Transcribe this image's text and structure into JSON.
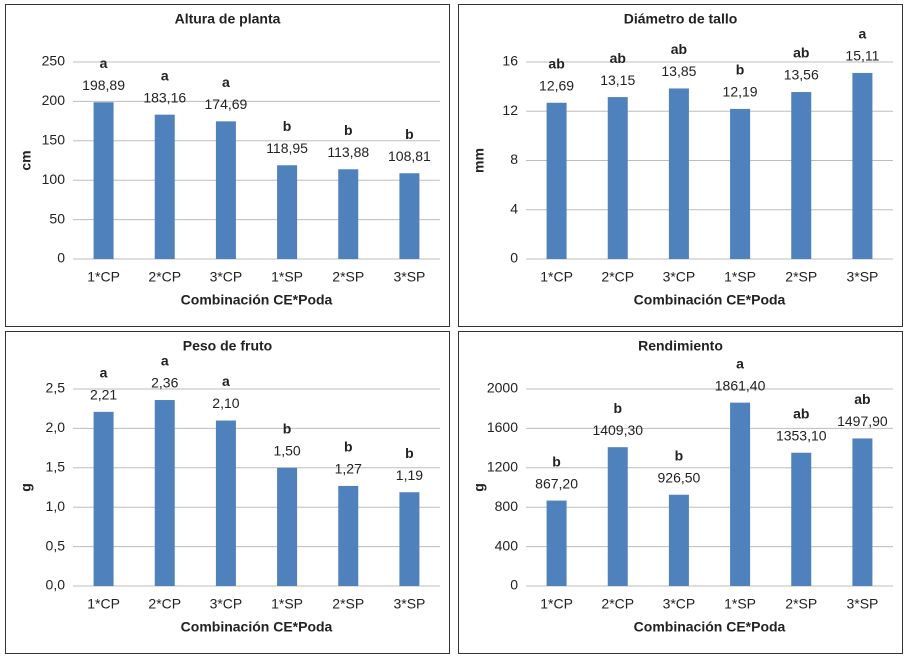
{
  "chart_data": [
    {
      "type": "bar",
      "title": "Altura de planta",
      "xlabel": "Combinación CE*Poda",
      "ylabel": "cm",
      "categories": [
        "1*CP",
        "2*CP",
        "3*CP",
        "1*SP",
        "2*SP",
        "3*SP"
      ],
      "values": [
        198.89,
        183.16,
        174.69,
        118.95,
        113.88,
        108.81
      ],
      "value_labels": [
        "198,89",
        "183,16",
        "174,69",
        "118,95",
        "113,88",
        "108,81"
      ],
      "annotations": [
        "a",
        "a",
        "a",
        "b",
        "b",
        "b"
      ],
      "color": "#4f81bd",
      "ylim": [
        0,
        250
      ],
      "yticks": [
        0,
        50,
        100,
        150,
        200,
        250
      ],
      "grid": true
    },
    {
      "type": "bar",
      "title": "Diámetro de tallo",
      "xlabel": "Combinación CE*Poda",
      "ylabel": "mm",
      "categories": [
        "1*CP",
        "2*CP",
        "3*CP",
        "1*SP",
        "2*SP",
        "3*SP"
      ],
      "values": [
        12.69,
        13.15,
        13.85,
        12.19,
        13.56,
        15.11
      ],
      "value_labels": [
        "12,69",
        "13,15",
        "13,85",
        "12,19",
        "13,56",
        "15,11"
      ],
      "annotations": [
        "ab",
        "ab",
        "ab",
        "b",
        "ab",
        "a"
      ],
      "color": "#4f81bd",
      "ylim": [
        0,
        16
      ],
      "yticks": [
        0,
        4,
        8,
        12,
        16
      ],
      "grid": true
    },
    {
      "type": "bar",
      "title": "Peso de fruto",
      "xlabel": "Combinación CE*Poda",
      "ylabel": "g",
      "categories": [
        "1*CP",
        "2*CP",
        "3*CP",
        "1*SP",
        "2*SP",
        "3*SP"
      ],
      "values": [
        2.21,
        2.36,
        2.1,
        1.5,
        1.27,
        1.19
      ],
      "value_labels": [
        "2,21",
        "2,36",
        "2,10",
        "1,50",
        "1,27",
        "1,19"
      ],
      "annotations": [
        "a",
        "a",
        "a",
        "b",
        "b",
        "b"
      ],
      "color": "#4f81bd",
      "ylim": [
        0,
        2.5
      ],
      "yticks": [
        {
          "value": 0,
          "label": "0,0"
        },
        {
          "value": 0.5,
          "label": "0,5"
        },
        {
          "value": 1,
          "label": "1,0"
        },
        {
          "value": 1.5,
          "label": "1,5"
        },
        {
          "value": 2,
          "label": "2,0"
        },
        {
          "value": 2.5,
          "label": "2,5"
        }
      ],
      "grid": true
    },
    {
      "type": "bar",
      "title": "Rendimiento",
      "xlabel": "Combinación CE*Poda",
      "ylabel": "g",
      "categories": [
        "1*CP",
        "2*CP",
        "3*CP",
        "1*SP",
        "2*SP",
        "3*SP"
      ],
      "values": [
        867.2,
        1409.3,
        926.5,
        1861.4,
        1353.1,
        1497.9
      ],
      "value_labels": [
        "867,20",
        "1409,30",
        "926,50",
        "1861,40",
        "1353,10",
        "1497,90"
      ],
      "annotations": [
        "b",
        "b",
        "b",
        "a",
        "ab",
        "ab"
      ],
      "color": "#4f81bd",
      "ylim": [
        0,
        2000
      ],
      "yticks": [
        0,
        400,
        800,
        1200,
        1600,
        2000
      ],
      "grid": true
    }
  ]
}
